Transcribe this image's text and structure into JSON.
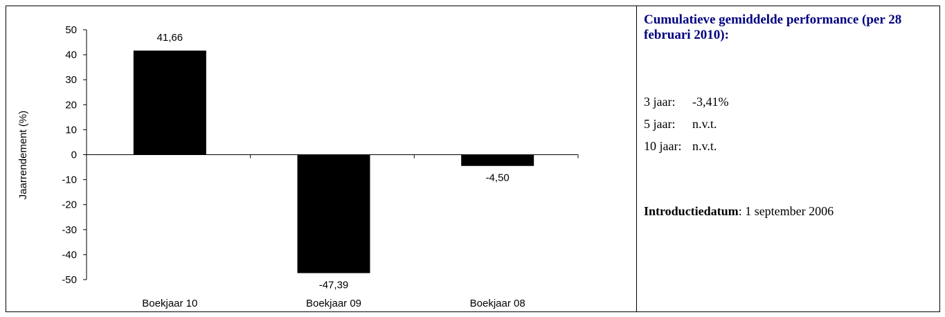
{
  "chart_data": {
    "type": "bar",
    "categories": [
      "Boekjaar 10",
      "Boekjaar 09",
      "Boekjaar 08"
    ],
    "values": [
      41.66,
      -47.39,
      -4.5
    ],
    "data_labels": [
      "41,66",
      "-47,39",
      "-4,50"
    ],
    "ylabel": "Jaarrendement (%)",
    "ylim": [
      -50,
      50
    ],
    "yticks": [
      "50",
      "40",
      "30",
      "20",
      "10",
      "0",
      "-10",
      "-20",
      "-30",
      "-40",
      "-50"
    ],
    "grid": false,
    "bar_color": "#000000"
  },
  "panel": {
    "title": "Cumulatieve gemiddelde performance (per 28 februari 2010):",
    "title_color": "#000080",
    "rows": [
      {
        "label": "3 jaar:",
        "value": "-3,41%"
      },
      {
        "label": "5 jaar:",
        "value": "n.v.t."
      },
      {
        "label": "10 jaar:",
        "value": "n.v.t."
      }
    ],
    "intro_key": "Introductiedatum",
    "intro_value": ": 1 september 2006"
  }
}
